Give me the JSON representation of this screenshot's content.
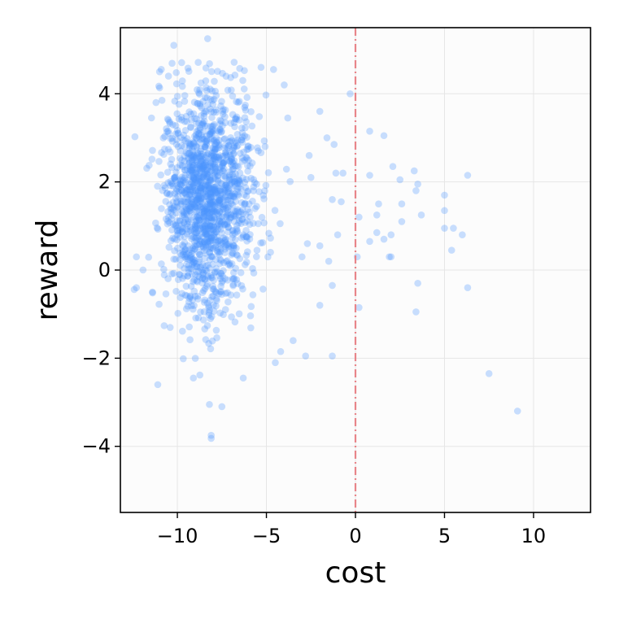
{
  "chart_data": {
    "type": "scatter",
    "title": "",
    "xlabel": "cost",
    "ylabel": "reward",
    "xlim": [
      -13.2,
      13.2
    ],
    "ylim": [
      -5.5,
      5.5
    ],
    "xticks": [
      -10,
      -5,
      0,
      5,
      10
    ],
    "xtick_labels": [
      "−10",
      "−5",
      "0",
      "5",
      "10"
    ],
    "yticks": [
      -4,
      -2,
      0,
      2,
      4
    ],
    "ytick_labels": [
      "−4",
      "−2",
      "0",
      "2",
      "4"
    ],
    "grid": true,
    "threshold_line": {
      "x": 0,
      "style": "dash-dot",
      "color": "#e8858a"
    },
    "point_color": "#4d94ff",
    "background": "#fcfcfc",
    "cluster": {
      "center": [
        -8.3,
        1.6
      ],
      "spread": [
        1.3,
        1.2
      ],
      "count": 1500,
      "note_x_range": [
        -12.5,
        -0.5
      ]
    },
    "points": [
      [
        -8.3,
        5.25
      ],
      [
        -10.2,
        5.1
      ],
      [
        -5.3,
        4.6
      ],
      [
        -4.6,
        4.55
      ],
      [
        -4.0,
        4.2
      ],
      [
        -0.3,
        4.0
      ],
      [
        -11.0,
        4.5
      ],
      [
        -10.5,
        4.4
      ],
      [
        -11.2,
        3.8
      ],
      [
        -3.8,
        3.45
      ],
      [
        -2.0,
        3.6
      ],
      [
        -1.6,
        3.0
      ],
      [
        -1.2,
        2.85
      ],
      [
        0.8,
        3.15
      ],
      [
        1.6,
        3.05
      ],
      [
        -2.6,
        2.6
      ],
      [
        -2.5,
        2.1
      ],
      [
        -1.1,
        2.2
      ],
      [
        -0.7,
        2.2
      ],
      [
        0.8,
        2.15
      ],
      [
        2.1,
        2.35
      ],
      [
        2.5,
        2.05
      ],
      [
        3.3,
        2.25
      ],
      [
        3.5,
        1.95
      ],
      [
        3.4,
        1.8
      ],
      [
        6.3,
        2.15
      ],
      [
        5.0,
        1.7
      ],
      [
        -1.3,
        1.6
      ],
      [
        -0.8,
        1.55
      ],
      [
        0.2,
        1.2
      ],
      [
        1.3,
        1.5
      ],
      [
        1.2,
        1.25
      ],
      [
        2.6,
        1.5
      ],
      [
        2.6,
        1.1
      ],
      [
        3.7,
        1.25
      ],
      [
        5.0,
        1.35
      ],
      [
        5.5,
        0.95
      ],
      [
        5.0,
        0.95
      ],
      [
        6.0,
        0.8
      ],
      [
        1.2,
        0.85
      ],
      [
        2.0,
        0.8
      ],
      [
        1.6,
        0.7
      ],
      [
        0.8,
        0.65
      ],
      [
        -1.0,
        0.8
      ],
      [
        -2.7,
        0.6
      ],
      [
        -2.0,
        0.55
      ],
      [
        0.1,
        0.3
      ],
      [
        1.9,
        0.3
      ],
      [
        2.0,
        0.3
      ],
      [
        5.4,
        0.45
      ],
      [
        -1.5,
        0.2
      ],
      [
        -3.0,
        0.3
      ],
      [
        3.5,
        -0.3
      ],
      [
        6.3,
        -0.4
      ],
      [
        0.2,
        -0.85
      ],
      [
        -1.3,
        -0.35
      ],
      [
        -2.0,
        -0.8
      ],
      [
        3.4,
        -0.95
      ],
      [
        -2.8,
        -1.95
      ],
      [
        -1.3,
        -1.95
      ],
      [
        7.5,
        -2.35
      ],
      [
        9.1,
        -3.2
      ],
      [
        -3.5,
        -1.6
      ],
      [
        -4.2,
        -1.85
      ],
      [
        -4.5,
        -2.1
      ],
      [
        -8.1,
        -3.75
      ],
      [
        -8.1,
        -3.82
      ],
      [
        -7.5,
        -3.1
      ],
      [
        -8.2,
        -3.05
      ],
      [
        -11.1,
        -2.6
      ],
      [
        -9.1,
        -2.45
      ],
      [
        -12.3,
        -0.4
      ],
      [
        -12.3,
        0.3
      ],
      [
        -11.4,
        -0.5
      ],
      [
        -6.3,
        -2.45
      ]
    ]
  }
}
